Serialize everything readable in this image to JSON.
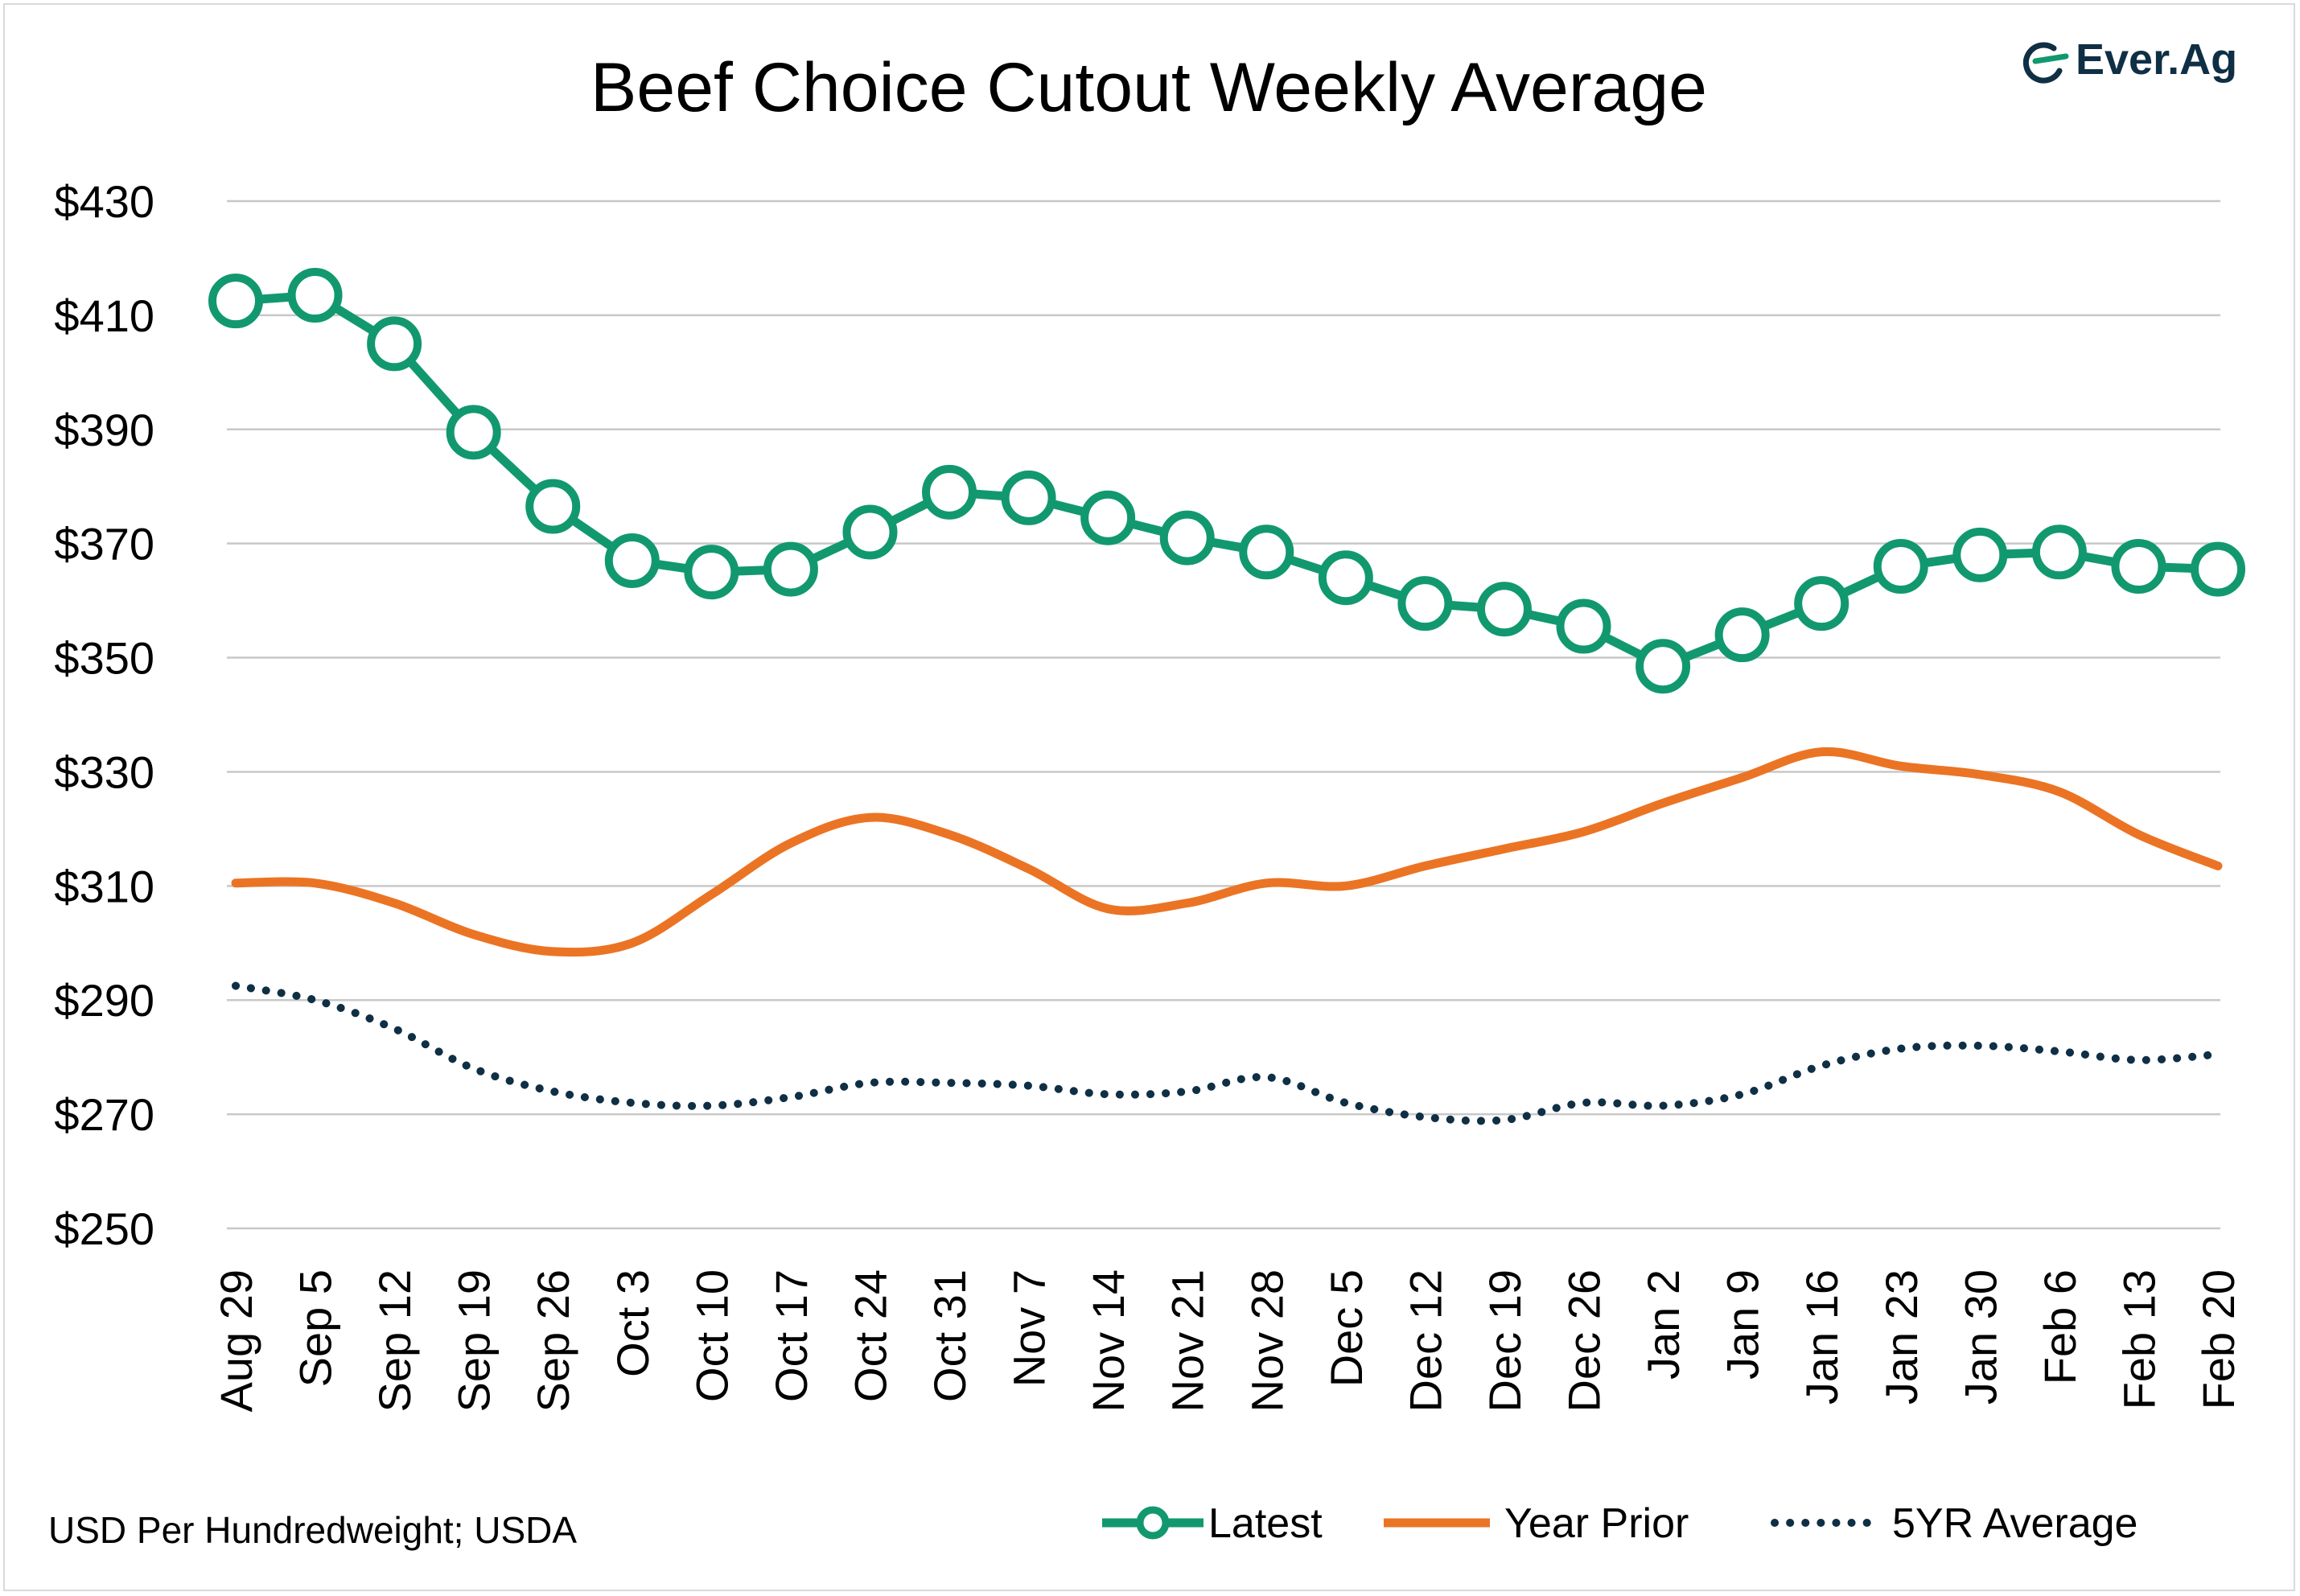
{
  "chart_data": {
    "type": "line",
    "title": "Beef Choice Cutout Weekly Average",
    "source_note": "USD Per Hundredweight; USDA",
    "brand": "Ever.Ag",
    "ylim": [
      250,
      430
    ],
    "yticks": [
      250,
      270,
      290,
      310,
      330,
      350,
      370,
      390,
      410,
      430
    ],
    "ytick_labels": [
      "$250",
      "$270",
      "$290",
      "$310",
      "$330",
      "$350",
      "$370",
      "$390",
      "$410",
      "$430"
    ],
    "grid": true,
    "legend_position": "bottom-right",
    "categories": [
      "Aug 29",
      "Sep 5",
      "Sep 12",
      "Sep 19",
      "Sep 26",
      "Oct 3",
      "Oct 10",
      "Oct 17",
      "Oct 24",
      "Oct 31",
      "Nov 7",
      "Nov 14",
      "Nov 21",
      "Nov 28",
      "Dec 5",
      "Dec 12",
      "Dec 19",
      "Dec 26",
      "Jan 2",
      "Jan 9",
      "Jan 16",
      "Jan 23",
      "Jan 30",
      "Feb 6",
      "Feb 13",
      "Feb 20"
    ],
    "series": [
      {
        "name": "Latest",
        "style": "line-markers",
        "color": "#12986f",
        "values": [
          412.5,
          413.5,
          405.0,
          389.5,
          376.5,
          367.0,
          365.0,
          365.5,
          372.0,
          379.0,
          378.0,
          374.5,
          371.0,
          368.5,
          364.0,
          359.5,
          358.5,
          355.5,
          348.5,
          354.0,
          359.5,
          366.0,
          368.0,
          368.5,
          366.0,
          365.5
        ]
      },
      {
        "name": "Year Prior",
        "style": "line",
        "color": "#eb7424",
        "values": [
          310.5,
          310.5,
          307.0,
          301.5,
          298.5,
          300.0,
          308.5,
          317.5,
          322.0,
          319.0,
          313.0,
          306.0,
          307.0,
          310.5,
          310.0,
          313.5,
          316.5,
          319.5,
          324.5,
          329.0,
          333.5,
          331.0,
          329.5,
          326.5,
          319.0,
          313.5
        ]
      },
      {
        "name": "5YR Average",
        "style": "dotted",
        "color": "#0f2f45",
        "values": [
          292.5,
          290.0,
          285.0,
          278.0,
          274.0,
          272.0,
          271.5,
          273.0,
          275.5,
          275.5,
          275.0,
          273.5,
          274.0,
          276.5,
          272.0,
          269.5,
          269.0,
          272.0,
          271.5,
          273.5,
          278.5,
          281.5,
          282.0,
          281.0,
          279.5,
          280.5
        ]
      }
    ]
  }
}
